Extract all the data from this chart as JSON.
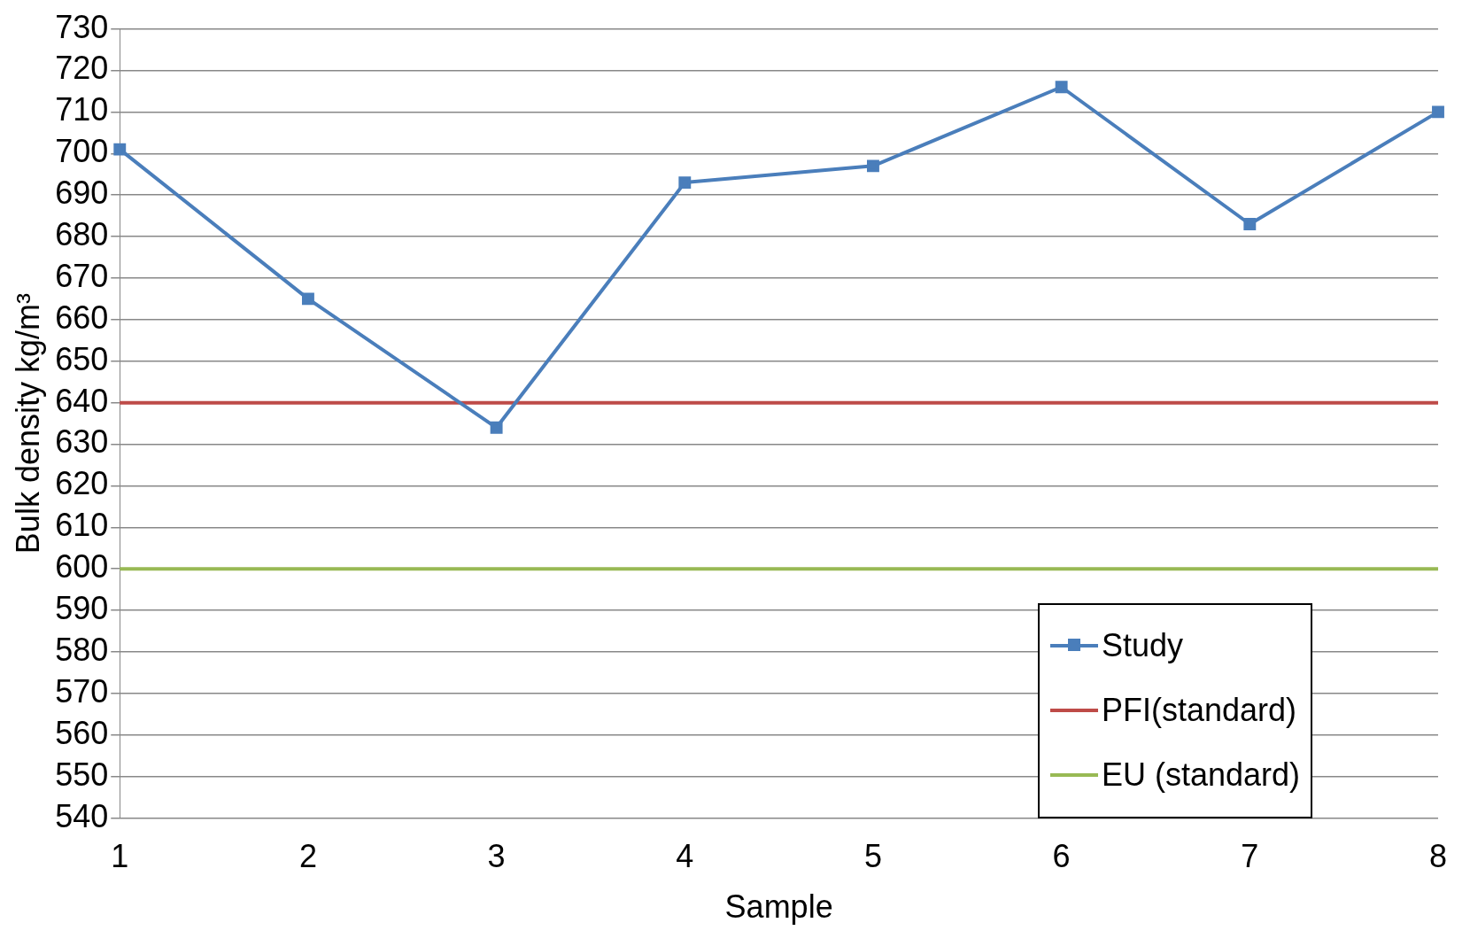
{
  "chart_data": {
    "type": "line",
    "xlabel": "Sample",
    "ylabel": "Bulk density kg/m³",
    "categories": [
      "1",
      "2",
      "3",
      "4",
      "5",
      "6",
      "7",
      "8"
    ],
    "series": [
      {
        "name": "Study",
        "color": "#4a7ebb",
        "values": [
          701,
          665,
          634,
          693,
          697,
          716,
          683,
          710
        ],
        "marker": "square"
      },
      {
        "name": "PFI(standard)",
        "color": "#be4b48",
        "values": [
          640,
          640,
          640,
          640,
          640,
          640,
          640,
          640
        ],
        "marker": "none"
      },
      {
        "name": "EU (standard)",
        "color": "#98b954",
        "values": [
          600,
          600,
          600,
          600,
          600,
          600,
          600,
          600
        ],
        "marker": "none"
      }
    ],
    "ylim": [
      540,
      730
    ],
    "yticks": [
      540,
      550,
      560,
      570,
      580,
      590,
      600,
      610,
      620,
      630,
      640,
      650,
      660,
      670,
      680,
      690,
      700,
      710,
      720,
      730
    ],
    "grid": "y",
    "legend": "bottom right"
  }
}
